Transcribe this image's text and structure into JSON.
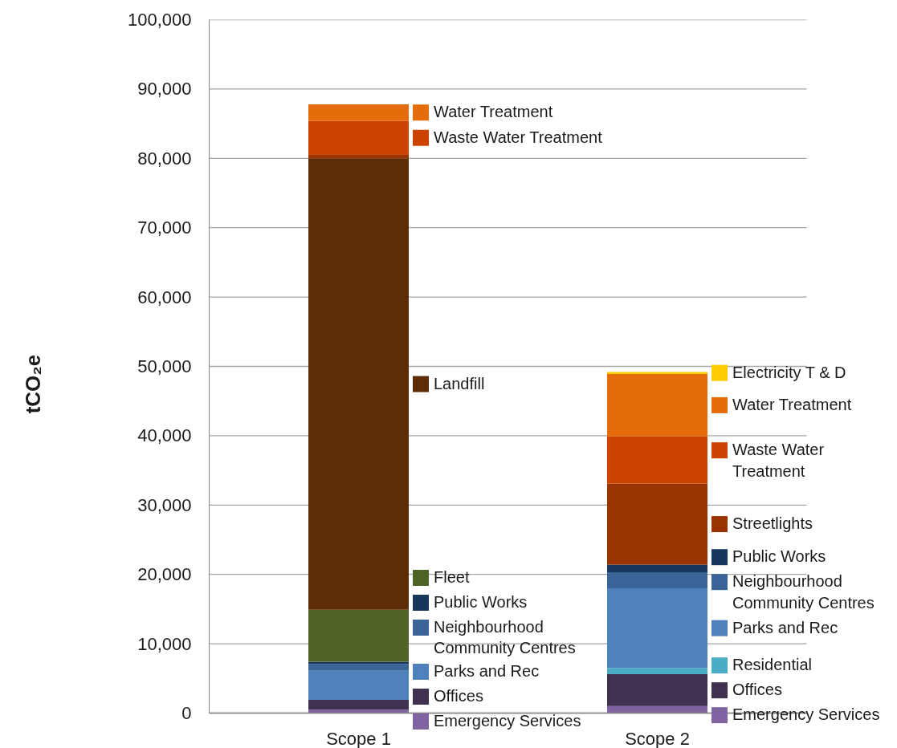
{
  "chart_data": {
    "type": "bar",
    "stacked": true,
    "ylabel": "tCO₂e",
    "categories": [
      "Scope 1",
      "Scope 2"
    ],
    "ylim": [
      0,
      100000
    ],
    "yticks": [
      {
        "value": 0,
        "label": "0"
      },
      {
        "value": 10000,
        "label": "10,000"
      },
      {
        "value": 20000,
        "label": "20,000"
      },
      {
        "value": 30000,
        "label": "30,000"
      },
      {
        "value": 40000,
        "label": "40,000"
      },
      {
        "value": 50000,
        "label": "50,000"
      },
      {
        "value": 60000,
        "label": "60,000"
      },
      {
        "value": 70000,
        "label": "70,000"
      },
      {
        "value": 80000,
        "label": "80,000"
      },
      {
        "value": 90000,
        "label": "90,000"
      },
      {
        "value": 100000,
        "label": "100,000"
      }
    ],
    "grid": "y",
    "legend": "right",
    "series": [
      {
        "name": "Emergency Services",
        "color": "#8064a2",
        "values": [
          500,
          1000
        ]
      },
      {
        "name": "Offices",
        "color": "#403151",
        "values": [
          1400,
          4600
        ]
      },
      {
        "name": "Residential",
        "color": "#4bacc6",
        "values": [
          null,
          900
        ]
      },
      {
        "name": "Parks and Rec",
        "color": "#4f81bd",
        "values": [
          4200,
          11500
        ]
      },
      {
        "name": "Neighbourhood Community Centres",
        "color": "#3a6497",
        "values": [
          1000,
          2300
        ]
      },
      {
        "name": "Public Works",
        "color": "#17375e",
        "values": [
          300,
          1100
        ]
      },
      {
        "name": "Fleet",
        "color": "#4f6228",
        "values": [
          7500,
          null
        ]
      },
      {
        "name": "Landfill",
        "color": "#5c2d06",
        "values": [
          65100,
          null
        ]
      },
      {
        "color": "#993300",
        "values": [
          500,
          null
        ]
      },
      {
        "name": "Streetlights",
        "color": "#993300",
        "values": [
          null,
          11700
        ]
      },
      {
        "name": "Waste Water Treatment",
        "color": "#cc4400",
        "values": [
          4900,
          6800
        ]
      },
      {
        "name": "Water Treatment",
        "color": "#e46c0a",
        "values": [
          2400,
          9000
        ]
      },
      {
        "name": "Electricity T & D",
        "color": "#ffcc00",
        "values": [
          null,
          300
        ]
      }
    ]
  }
}
